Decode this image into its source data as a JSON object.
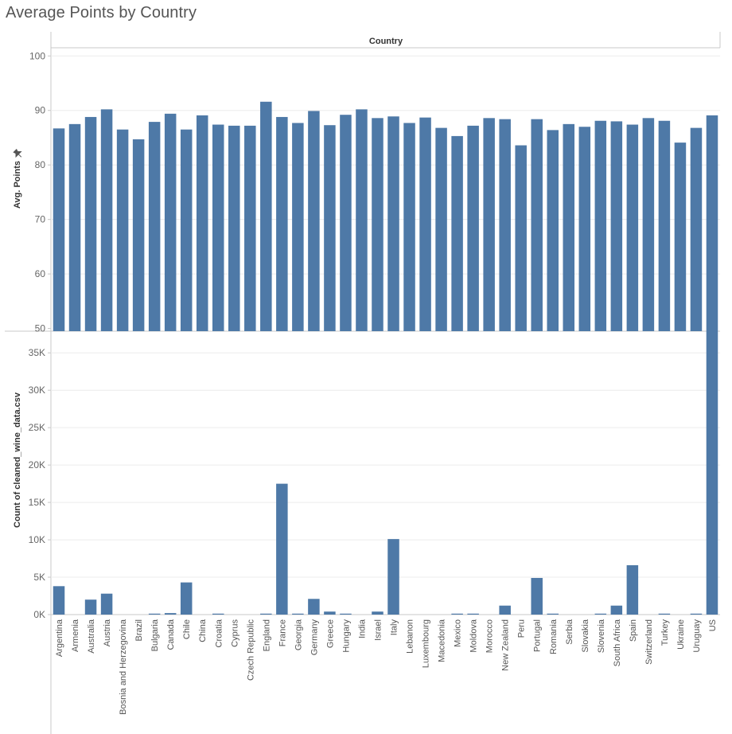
{
  "title": "Average Points by Country",
  "chart_data": {
    "type": "bar",
    "column_header": "Country",
    "categories": [
      "Argentina",
      "Armenia",
      "Australia",
      "Austria",
      "Bosnia and Herzegovina",
      "Brazil",
      "Bulgaria",
      "Canada",
      "Chile",
      "China",
      "Croatia",
      "Cyprus",
      "Czech Republic",
      "England",
      "France",
      "Georgia",
      "Germany",
      "Greece",
      "Hungary",
      "India",
      "Israel",
      "Italy",
      "Lebanon",
      "Luxembourg",
      "Macedonia",
      "Mexico",
      "Moldova",
      "Morocco",
      "New Zealand",
      "Peru",
      "Portugal",
      "Romania",
      "Serbia",
      "Slovakia",
      "Slovenia",
      "South Africa",
      "Spain",
      "Switzerland",
      "Turkey",
      "Ukraine",
      "Uruguay",
      "US"
    ],
    "color": "#4e79a7",
    "panes": [
      {
        "ylabel": "Avg. Points",
        "ylim": [
          49.5,
          101.5
        ],
        "yticks": [
          50,
          60,
          70,
          80,
          90,
          100
        ],
        "ytick_labels": [
          "50",
          "60",
          "70",
          "80",
          "90",
          "100"
        ],
        "values": [
          86.7,
          87.5,
          88.8,
          90.2,
          86.5,
          84.7,
          87.9,
          89.4,
          86.5,
          89.1,
          87.4,
          87.2,
          87.2,
          91.6,
          88.8,
          87.7,
          89.9,
          87.3,
          89.2,
          90.2,
          88.6,
          88.9,
          87.7,
          88.7,
          86.8,
          85.3,
          87.2,
          88.6,
          88.4,
          83.6,
          88.4,
          86.4,
          87.5,
          87.0,
          88.1,
          88.0,
          87.4,
          88.6,
          88.1,
          84.1,
          86.8,
          89.1
        ],
        "pinned": true
      },
      {
        "ylabel": "Count of cleaned_wine_data.csv",
        "ylim": [
          0,
          37900
        ],
        "yticks": [
          0,
          5000,
          10000,
          15000,
          20000,
          25000,
          30000,
          35000
        ],
        "ytick_labels": [
          "0K",
          "5K",
          "10K",
          "15K",
          "20K",
          "25K",
          "30K",
          "35K"
        ],
        "values": [
          3800,
          0,
          2000,
          2800,
          0,
          0,
          100,
          200,
          4300,
          0,
          100,
          0,
          0,
          100,
          17500,
          100,
          2100,
          400,
          100,
          0,
          400,
          10100,
          0,
          0,
          0,
          100,
          100,
          0,
          1200,
          0,
          4900,
          100,
          0,
          0,
          100,
          1200,
          6600,
          0,
          100,
          0,
          100,
          37900
        ]
      }
    ],
    "grid": true,
    "legend": "none"
  }
}
